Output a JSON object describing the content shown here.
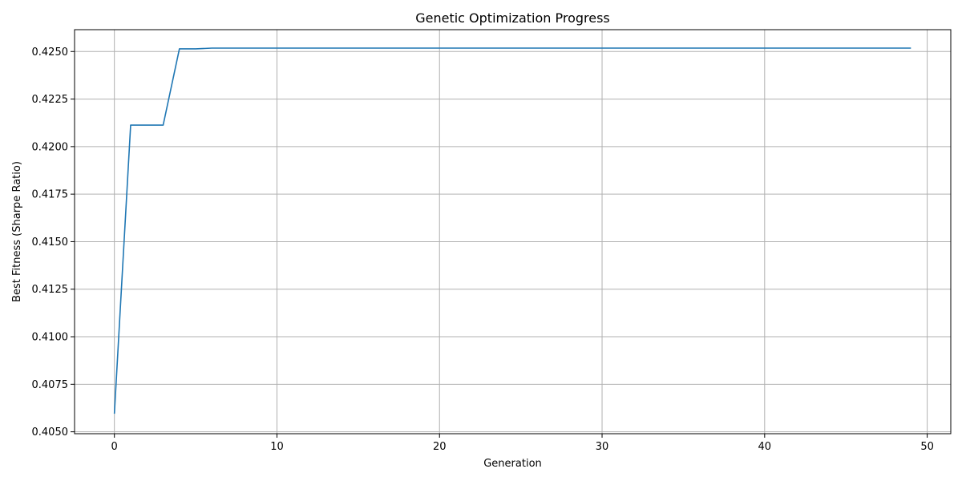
{
  "chart_data": {
    "type": "line",
    "title": "Genetic Optimization Progress",
    "xlabel": "Generation",
    "ylabel": "Best Fitness (Sharpe Ratio)",
    "xlim": [
      -2.45,
      51.45
    ],
    "ylim": [
      0.4049,
      0.42615
    ],
    "xticks": [
      0,
      10,
      20,
      30,
      40,
      50
    ],
    "xtick_labels": [
      "0",
      "10",
      "20",
      "30",
      "40",
      "50"
    ],
    "yticks": [
      0.405,
      0.4075,
      0.41,
      0.4125,
      0.415,
      0.4175,
      0.42,
      0.4225,
      0.425
    ],
    "ytick_labels": [
      "0.4050",
      "0.4075",
      "0.4100",
      "0.4125",
      "0.4150",
      "0.4175",
      "0.4200",
      "0.4225",
      "0.4250"
    ],
    "grid": true,
    "line_color": "#1f77b4",
    "grid_color": "#b0b0b0",
    "x": [
      0,
      1,
      2,
      3,
      4,
      5,
      6,
      7,
      8,
      9,
      10,
      11,
      12,
      13,
      14,
      15,
      16,
      17,
      18,
      19,
      20,
      21,
      22,
      23,
      24,
      25,
      26,
      27,
      28,
      29,
      30,
      31,
      32,
      33,
      34,
      35,
      36,
      37,
      38,
      39,
      40,
      41,
      42,
      43,
      44,
      45,
      46,
      47,
      48,
      49
    ],
    "series": [
      {
        "values": [
          0.40595,
          0.42113,
          0.42113,
          0.42113,
          0.42514,
          0.42514,
          0.42518,
          0.42518,
          0.42518,
          0.42518,
          0.42518,
          0.42518,
          0.42518,
          0.42518,
          0.42518,
          0.42518,
          0.42518,
          0.42518,
          0.42518,
          0.42518,
          0.42518,
          0.42518,
          0.42518,
          0.42518,
          0.42518,
          0.42518,
          0.42518,
          0.42518,
          0.42518,
          0.42518,
          0.42518,
          0.42518,
          0.42518,
          0.42518,
          0.42518,
          0.42518,
          0.42518,
          0.42518,
          0.42518,
          0.42518,
          0.42518,
          0.42518,
          0.42518,
          0.42518,
          0.42518,
          0.42518,
          0.42518,
          0.42518,
          0.42518,
          0.42518
        ]
      }
    ]
  }
}
